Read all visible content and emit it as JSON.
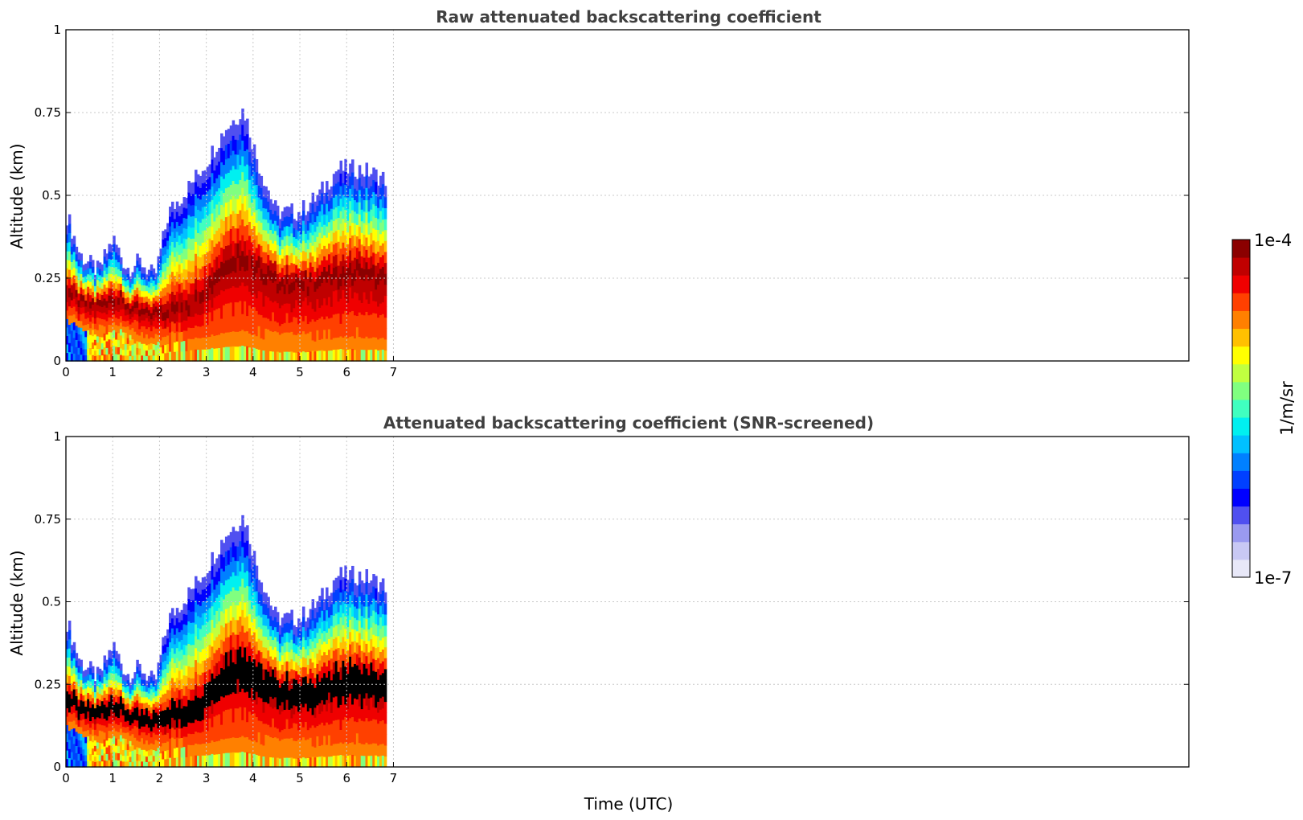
{
  "chart_data": [
    {
      "type": "heatmap",
      "title": "Raw attenuated backscattering coefficient",
      "xlabel": "",
      "ylabel": "Altitude (km)",
      "x_range": [
        0,
        24
      ],
      "y_range": [
        0,
        1
      ],
      "x_ticks": [
        "0",
        "1",
        "2",
        "3",
        "4",
        "5",
        "6",
        "7"
      ],
      "y_ticks": [
        "0",
        "0.25",
        "0.5",
        "0.75",
        "1"
      ],
      "grid": true,
      "data_end_time": 6.8,
      "profile": [
        {
          "t": 0.0,
          "base": 0.12,
          "core": 0.22,
          "top": 0.45
        },
        {
          "t": 0.3,
          "base": 0.1,
          "core": 0.18,
          "top": 0.32
        },
        {
          "t": 0.7,
          "base": 0.08,
          "core": 0.17,
          "top": 0.27
        },
        {
          "t": 1.0,
          "base": 0.1,
          "core": 0.2,
          "top": 0.37
        },
        {
          "t": 1.3,
          "base": 0.08,
          "core": 0.17,
          "top": 0.28
        },
        {
          "t": 1.6,
          "base": 0.06,
          "core": 0.15,
          "top": 0.3
        },
        {
          "t": 1.9,
          "base": 0.05,
          "core": 0.15,
          "top": 0.25
        },
        {
          "t": 2.2,
          "base": 0.05,
          "core": 0.16,
          "top": 0.45
        },
        {
          "t": 2.6,
          "base": 0.05,
          "core": 0.17,
          "top": 0.52
        },
        {
          "t": 3.0,
          "base": 0.05,
          "core": 0.22,
          "top": 0.6
        },
        {
          "t": 3.4,
          "base": 0.05,
          "core": 0.3,
          "top": 0.7
        },
        {
          "t": 3.8,
          "base": 0.04,
          "core": 0.33,
          "top": 0.76
        },
        {
          "t": 4.1,
          "base": 0.03,
          "core": 0.28,
          "top": 0.6
        },
        {
          "t": 4.5,
          "base": 0.03,
          "core": 0.25,
          "top": 0.45
        },
        {
          "t": 5.0,
          "base": 0.03,
          "core": 0.24,
          "top": 0.45
        },
        {
          "t": 5.4,
          "base": 0.03,
          "core": 0.25,
          "top": 0.5
        },
        {
          "t": 5.8,
          "base": 0.03,
          "core": 0.27,
          "top": 0.58
        },
        {
          "t": 6.2,
          "base": 0.03,
          "core": 0.28,
          "top": 0.58
        },
        {
          "t": 6.5,
          "base": 0.03,
          "core": 0.27,
          "top": 0.57
        },
        {
          "t": 6.8,
          "base": 0.03,
          "core": 0.25,
          "top": 0.55
        }
      ]
    },
    {
      "type": "heatmap",
      "title": "Attenuated backscattering coefficient (SNR-screened)",
      "xlabel": "Time (UTC)",
      "ylabel": "Altitude (km)",
      "x_range": [
        0,
        24
      ],
      "y_range": [
        0,
        1
      ],
      "x_ticks": [
        "0",
        "1",
        "2",
        "3",
        "4",
        "5",
        "6",
        "7"
      ],
      "y_ticks": [
        "0",
        "0.25",
        "0.5",
        "0.75",
        "1"
      ],
      "grid": true,
      "data_end_time": 6.8,
      "screened_core_color": "#000000"
    }
  ],
  "colorbar": {
    "label": "1/m/sr",
    "max_label": "1e-4",
    "min_label": "1e-7",
    "scale": "log",
    "colormap": "jet",
    "colors": [
      "#e8e8f8",
      "#c8c8f4",
      "#9a9af0",
      "#5050f0",
      "#0000ff",
      "#0040ff",
      "#0080ff",
      "#00c0ff",
      "#00f0f0",
      "#40ffc0",
      "#80ff80",
      "#c0ff40",
      "#ffff00",
      "#ffc000",
      "#ff8000",
      "#ff4000",
      "#f00000",
      "#c00000",
      "#8b0000"
    ]
  }
}
